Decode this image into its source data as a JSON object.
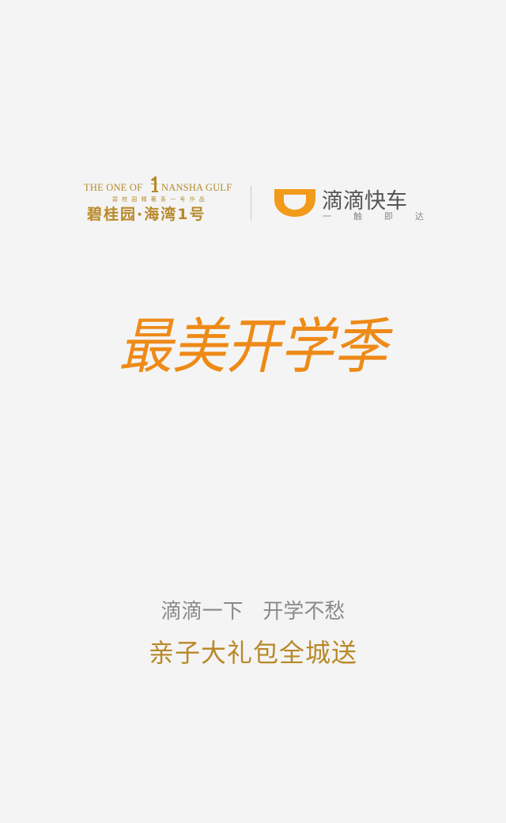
{
  "header": {
    "bgy_logo": {
      "english_left": "THE ONE OF",
      "english_right": "NANSHA GULF",
      "chinese_small": "碧桂园精著系一号作品",
      "chinese_big": "碧桂园·海湾1号"
    },
    "didi_logo": {
      "name": "滴滴快车",
      "slogan": [
        "一",
        "触",
        "即",
        "达"
      ]
    }
  },
  "hero": {
    "title": "最美开学季"
  },
  "tagline": "滴滴一下   开学不愁",
  "promo": "亲子大礼包全城送",
  "colors": {
    "background": "#f4f4f4",
    "gold": "#b8892a",
    "orange": "#ee8a17",
    "gray_text": "#8a8a8a",
    "didi_orange": "#f29a1a"
  }
}
